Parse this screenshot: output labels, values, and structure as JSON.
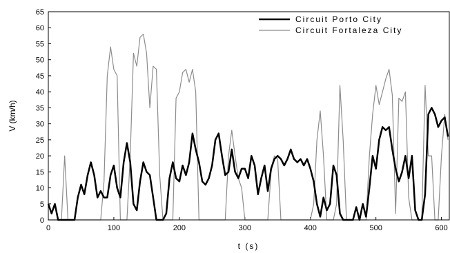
{
  "chart_data": {
    "type": "line",
    "xlabel": "t (s)",
    "ylabel": "V (km/h)",
    "x": [
      0,
      5,
      10,
      15,
      20,
      25,
      30,
      35,
      40,
      45,
      50,
      55,
      60,
      65,
      70,
      75,
      80,
      85,
      90,
      95,
      100,
      105,
      110,
      115,
      120,
      125,
      130,
      135,
      140,
      145,
      150,
      155,
      160,
      165,
      170,
      175,
      180,
      185,
      190,
      195,
      200,
      205,
      210,
      215,
      220,
      225,
      230,
      235,
      240,
      245,
      250,
      255,
      260,
      265,
      270,
      275,
      280,
      285,
      290,
      295,
      300,
      305,
      310,
      315,
      320,
      325,
      330,
      335,
      340,
      345,
      350,
      355,
      360,
      365,
      370,
      375,
      380,
      385,
      390,
      395,
      400,
      405,
      410,
      415,
      420,
      425,
      430,
      435,
      440,
      445,
      450,
      455,
      460,
      465,
      470,
      475,
      480,
      485,
      490,
      495,
      500,
      505,
      510,
      515,
      520,
      525,
      530,
      535,
      540,
      545,
      550,
      555,
      560,
      565,
      570,
      575,
      580,
      585,
      590,
      595,
      600,
      605,
      610
    ],
    "series": [
      {
        "name": "Circuit Porto City",
        "color": "#000000",
        "width": 2.5,
        "values": [
          5,
          2,
          5,
          0,
          0,
          0,
          0,
          0,
          0,
          7,
          11,
          8,
          14,
          18,
          14,
          7,
          9,
          7,
          7,
          14,
          17,
          10,
          7,
          18,
          24,
          18,
          5,
          3,
          12,
          18,
          15,
          14,
          7,
          0,
          0,
          0,
          2,
          13,
          18,
          13,
          12,
          17,
          14,
          18,
          27,
          22,
          18,
          12,
          11,
          13,
          17,
          25,
          27,
          20,
          14,
          15,
          22,
          15,
          13,
          16,
          16,
          13,
          20,
          17,
          8,
          13,
          17,
          9,
          16,
          19,
          20,
          19,
          17,
          19,
          22,
          19,
          18,
          19,
          17,
          19,
          16,
          12,
          5,
          1,
          7,
          3,
          5,
          17,
          14,
          2,
          0,
          0,
          0,
          0,
          4,
          0,
          5,
          1,
          10,
          20,
          16,
          25,
          29,
          28,
          29,
          22,
          16,
          12,
          15,
          20,
          13,
          20,
          3,
          0,
          0,
          8,
          33,
          35,
          33,
          29,
          31,
          32,
          26
        ]
      },
      {
        "name": "Circuit Fortaleza City",
        "color": "#8c8c8c",
        "width": 1.2,
        "values": [
          0,
          0,
          0,
          0,
          0,
          20,
          0,
          0,
          0,
          0,
          0,
          0,
          0,
          0,
          0,
          0,
          0,
          12,
          45,
          54,
          47,
          45,
          0,
          0,
          0,
          20,
          52,
          48,
          57,
          58,
          52,
          35,
          48,
          47,
          14,
          0,
          0,
          0,
          0,
          38,
          40,
          46,
          47,
          43,
          47,
          40,
          0,
          0,
          0,
          0,
          0,
          0,
          0,
          0,
          0,
          20,
          28,
          20,
          13,
          10,
          0,
          0,
          0,
          0,
          0,
          0,
          0,
          0,
          15,
          20,
          19,
          0,
          0,
          0,
          0,
          0,
          0,
          0,
          0,
          0,
          0,
          5,
          25,
          34,
          20,
          0,
          0,
          0,
          5,
          42,
          25,
          0,
          0,
          0,
          0,
          0,
          0,
          0,
          20,
          33,
          42,
          36,
          40,
          44,
          47,
          39,
          2,
          38,
          37,
          40,
          7,
          0,
          0,
          0,
          0,
          42,
          20,
          20,
          0,
          0,
          20,
          33,
          25
        ]
      }
    ],
    "xlim": [
      0,
      612
    ],
    "xticks": [
      0,
      100,
      200,
      300,
      400,
      500,
      600
    ],
    "ylim": [
      0,
      65
    ],
    "yticks": [
      0,
      5,
      10,
      15,
      20,
      25,
      30,
      35,
      40,
      45,
      50,
      55,
      60,
      65
    ],
    "legend": "upper right"
  }
}
